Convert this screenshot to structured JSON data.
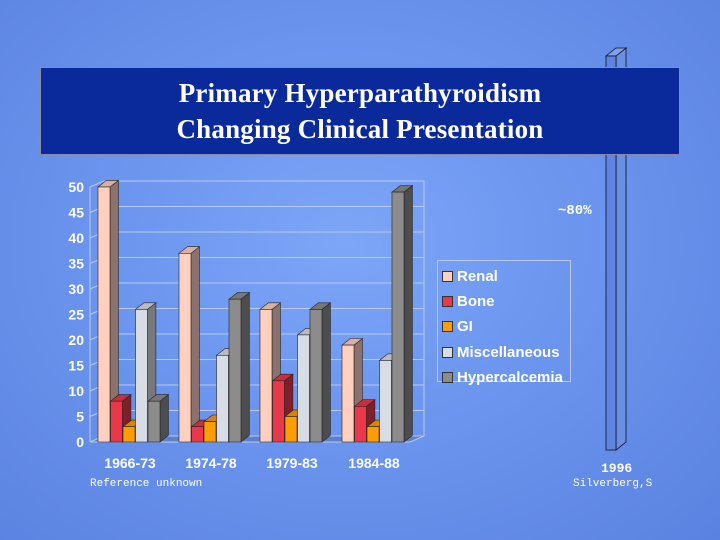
{
  "title": {
    "line1": "Primary Hyperparathyroidism",
    "line2": "Changing Clinical Presentation"
  },
  "chart_data": {
    "type": "bar",
    "categories": [
      "1966-73",
      "1974-78",
      "1979-83",
      "1984-88"
    ],
    "series": [
      {
        "name": "Renal",
        "values": [
          50,
          37,
          26,
          19
        ],
        "color": "#ffd0c0"
      },
      {
        "name": "Bone",
        "values": [
          8,
          3,
          12,
          7
        ],
        "color": "#e8384a"
      },
      {
        "name": "GI",
        "values": [
          3,
          4,
          5,
          3
        ],
        "color": "#ff9c00"
      },
      {
        "name": "Miscellaneous",
        "values": [
          26,
          17,
          21,
          16
        ],
        "color": "#d8dce4"
      },
      {
        "name": "Hypercalcemia",
        "values": [
          8,
          28,
          26,
          49
        ],
        "color": "#8c8c8c"
      }
    ],
    "yticks": [
      0,
      5,
      10,
      15,
      20,
      25,
      30,
      35,
      40,
      45,
      50
    ],
    "ylim": [
      0,
      50
    ],
    "grid": true,
    "legend_position": "right",
    "title": "",
    "xlabel": "",
    "ylabel": ""
  },
  "comparison_bar": {
    "label": "1996",
    "value_label": "~80%"
  },
  "notes": {
    "reference": "Reference unknown",
    "source": "Silverberg,S"
  }
}
